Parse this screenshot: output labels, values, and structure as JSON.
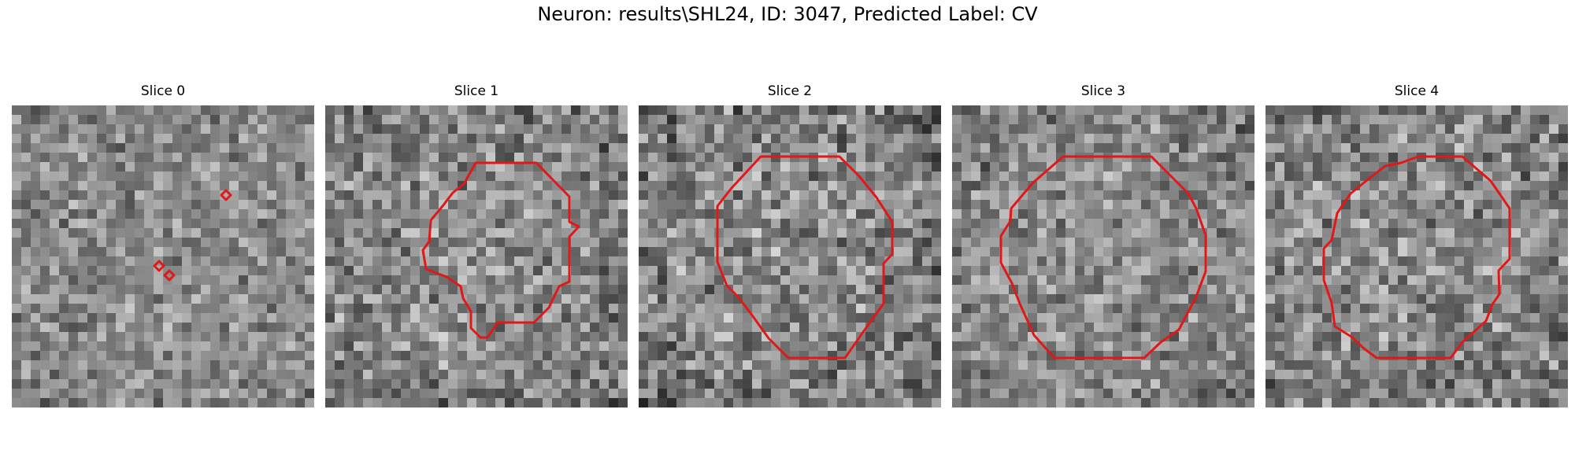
{
  "figure": {
    "title": "Neuron: results\\SHL24, ID: 3047, Predicted Label: CV"
  },
  "colors": {
    "outline": "#e01818"
  },
  "panels": [
    {
      "title": "Slice 0",
      "seed": 11,
      "contrast": 0.16,
      "dark": 0.05
    },
    {
      "title": "Slice 1",
      "seed": 23,
      "contrast": 0.2,
      "dark": 0.12
    },
    {
      "title": "Slice 2",
      "seed": 37,
      "contrast": 0.22,
      "dark": 0.15
    },
    {
      "title": "Slice 3",
      "seed": 41,
      "contrast": 0.17,
      "dark": 0.1
    },
    {
      "title": "Slice 4",
      "seed": 53,
      "contrast": 0.2,
      "dark": 0.12
    }
  ]
}
